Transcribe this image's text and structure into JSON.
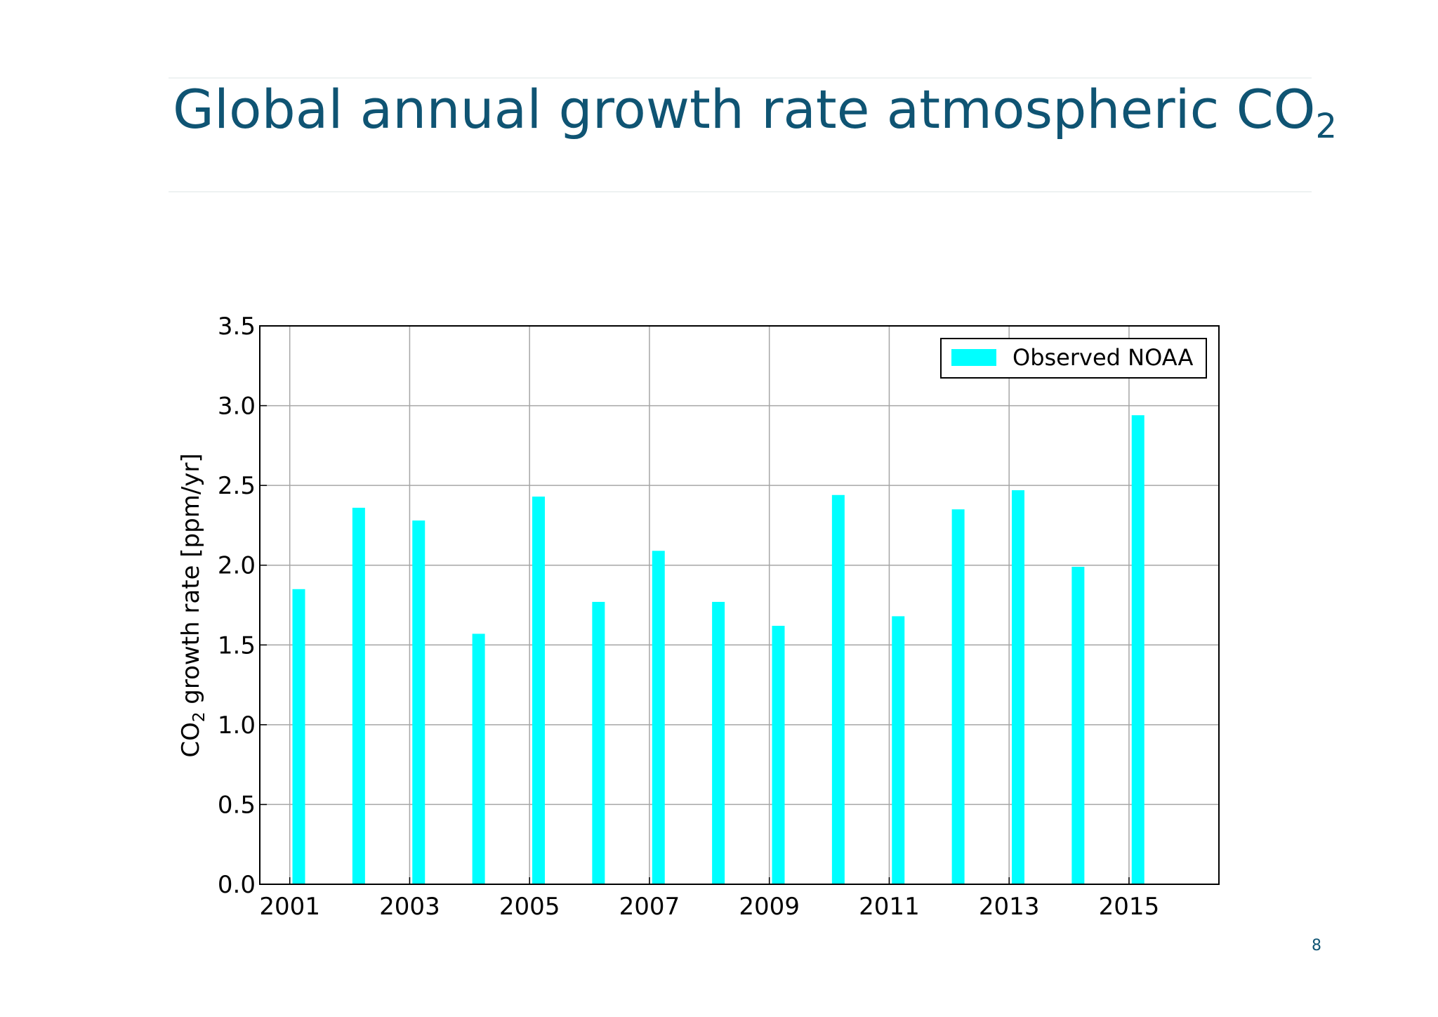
{
  "slide": {
    "title_main": "Global annual growth rate atmospheric CO",
    "title_sub": "2",
    "page_number": "8"
  },
  "chart_data": {
    "type": "bar",
    "categories": [
      "2001",
      "2002",
      "2003",
      "2004",
      "2005",
      "2006",
      "2007",
      "2008",
      "2009",
      "2010",
      "2011",
      "2012",
      "2013",
      "2014",
      "2015"
    ],
    "x": [
      2001.15,
      2002.15,
      2003.15,
      2004.15,
      2005.15,
      2006.15,
      2007.15,
      2008.15,
      2009.15,
      2010.15,
      2011.15,
      2012.15,
      2013.15,
      2014.15,
      2015.15
    ],
    "series": [
      {
        "name": "Observed NOAA",
        "color": "#00ffff",
        "values": [
          1.85,
          2.36,
          2.28,
          1.57,
          2.43,
          1.77,
          2.09,
          1.77,
          1.62,
          2.44,
          1.68,
          2.35,
          2.47,
          1.99,
          2.94
        ]
      }
    ],
    "xlim": [
      2000.5,
      2016.5
    ],
    "ylim": [
      0,
      3.5
    ],
    "xticks": [
      2001,
      2003,
      2005,
      2007,
      2009,
      2011,
      2013,
      2015
    ],
    "yticks": [
      "0.0",
      "0.5",
      "1.0",
      "1.5",
      "2.0",
      "2.5",
      "3.0",
      "3.5"
    ],
    "ylabel_main": "CO",
    "ylabel_sub": "2",
    "ylabel_rest": " growth rate [ppm/yr]",
    "grid": true,
    "legend_position": "top-right"
  }
}
